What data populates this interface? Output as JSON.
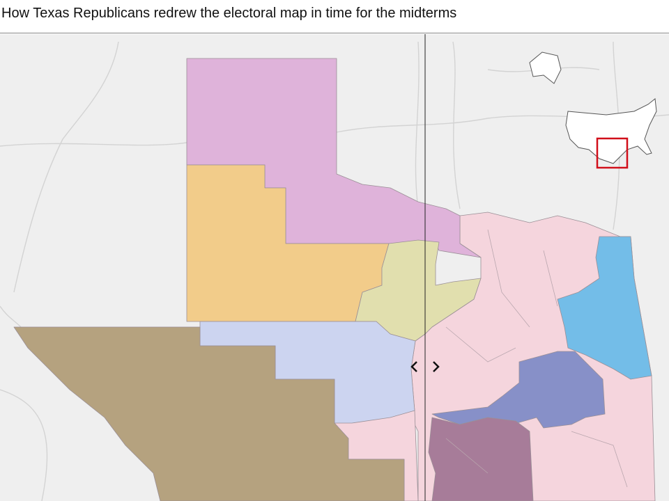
{
  "header": {
    "title": "How Texas Republicans redrew the electoral map in time for the midterms"
  }
}
